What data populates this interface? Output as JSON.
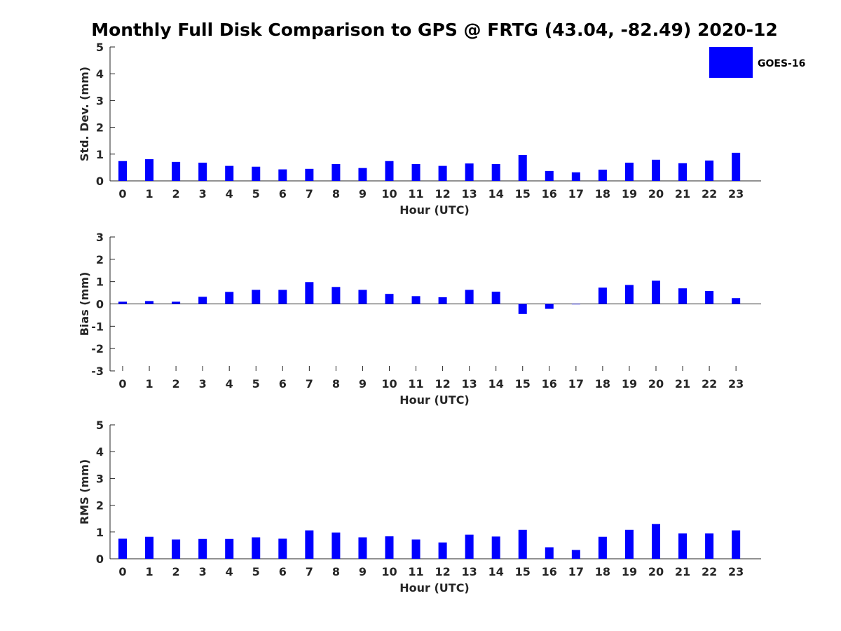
{
  "figure": {
    "title": "Monthly Full Disk Comparison to GPS @ FRTG (43.04, -82.49) 2020-12"
  },
  "legend": {
    "label": "GOES-16",
    "color": "#0000ff",
    "placement": "top-right"
  },
  "chart_data": [
    {
      "type": "bar",
      "categories": [
        "0",
        "1",
        "2",
        "3",
        "4",
        "5",
        "6",
        "7",
        "8",
        "9",
        "10",
        "11",
        "12",
        "13",
        "14",
        "15",
        "16",
        "17",
        "18",
        "19",
        "20",
        "21",
        "22",
        "23"
      ],
      "series": [
        {
          "name": "GOES-16",
          "color": "#0000ff",
          "values": [
            0.74,
            0.81,
            0.71,
            0.68,
            0.56,
            0.53,
            0.43,
            0.45,
            0.63,
            0.48,
            0.74,
            0.63,
            0.56,
            0.65,
            0.63,
            0.97,
            0.37,
            0.32,
            0.42,
            0.68,
            0.79,
            0.66,
            0.76,
            1.05
          ]
        }
      ],
      "xlabel": "Hour (UTC)",
      "ylabel": "Std. Dev. (mm)",
      "ylim": [
        0,
        5
      ],
      "yticks": [
        "0",
        "1",
        "2",
        "3",
        "4",
        "5"
      ],
      "grid": false
    },
    {
      "type": "bar",
      "categories": [
        "0",
        "1",
        "2",
        "3",
        "4",
        "5",
        "6",
        "7",
        "8",
        "9",
        "10",
        "11",
        "12",
        "13",
        "14",
        "15",
        "16",
        "17",
        "18",
        "19",
        "20",
        "21",
        "22",
        "23"
      ],
      "series": [
        {
          "name": "GOES-16",
          "color": "#0000ff",
          "values": [
            0.1,
            0.13,
            0.1,
            0.32,
            0.54,
            0.63,
            0.63,
            0.98,
            0.76,
            0.63,
            0.45,
            0.35,
            0.3,
            0.63,
            0.55,
            -0.45,
            -0.22,
            -0.02,
            0.73,
            0.85,
            1.04,
            0.7,
            0.58,
            0.26
          ]
        }
      ],
      "xlabel": "Hour (UTC)",
      "ylabel": "Bias (mm)",
      "ylim": [
        -3,
        3
      ],
      "yticks": [
        "-3",
        "-2",
        "-1",
        "0",
        "1",
        "2",
        "3"
      ],
      "grid": false
    },
    {
      "type": "bar",
      "categories": [
        "0",
        "1",
        "2",
        "3",
        "4",
        "5",
        "6",
        "7",
        "8",
        "9",
        "10",
        "11",
        "12",
        "13",
        "14",
        "15",
        "16",
        "17",
        "18",
        "19",
        "20",
        "21",
        "22",
        "23"
      ],
      "series": [
        {
          "name": "GOES-16",
          "color": "#0000ff",
          "values": [
            0.75,
            0.82,
            0.72,
            0.74,
            0.74,
            0.8,
            0.75,
            1.06,
            0.98,
            0.8,
            0.84,
            0.72,
            0.61,
            0.9,
            0.83,
            1.08,
            0.43,
            0.33,
            0.82,
            1.08,
            1.3,
            0.95,
            0.95,
            1.06
          ]
        }
      ],
      "xlabel": "Hour (UTC)",
      "ylabel": "RMS (mm)",
      "ylim": [
        0,
        5
      ],
      "yticks": [
        "0",
        "1",
        "2",
        "3",
        "4",
        "5"
      ],
      "grid": false
    }
  ]
}
